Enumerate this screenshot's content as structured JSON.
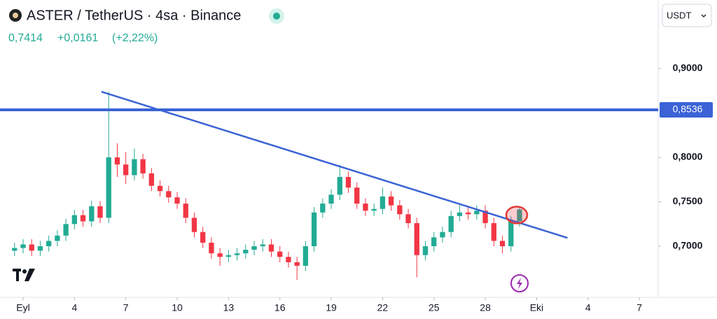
{
  "chart_data": {
    "type": "candlestick",
    "title": "ASTER / TetherUS · 4sa · Binance",
    "last_price": "0,7414",
    "change": "+0,0161",
    "change_percent": "(+2,22%)",
    "currency": "USDT",
    "up_color": "#22ab94",
    "down_color": "#f23645",
    "line_color": "#3b63d6",
    "x": [
      0.5,
      1,
      1.5,
      2,
      2.5,
      3,
      3.5,
      4,
      4.5,
      5,
      5.5,
      6,
      6.5,
      7,
      7.5,
      8,
      8.5,
      9,
      9.5,
      10,
      10.5,
      11,
      11.5,
      12,
      12.5,
      13,
      13.5,
      14,
      14.5,
      15,
      15.5,
      16,
      16.5,
      17,
      17.5,
      18,
      18.5,
      19,
      19.5,
      20,
      20.5,
      21,
      21.5,
      22,
      22.5,
      23,
      23.5,
      24,
      24.5,
      25,
      25.5,
      26,
      26.5,
      27,
      27.5,
      28,
      28.5,
      29,
      29.5,
      30
    ],
    "open": [
      0.695,
      0.698,
      0.702,
      0.695,
      0.7,
      0.706,
      0.712,
      0.725,
      0.735,
      0.728,
      0.745,
      0.732,
      0.8,
      0.792,
      0.78,
      0.798,
      0.782,
      0.768,
      0.762,
      0.755,
      0.748,
      0.732,
      0.716,
      0.704,
      0.692,
      0.688,
      0.69,
      0.692,
      0.696,
      0.7,
      0.702,
      0.694,
      0.688,
      0.682,
      0.678,
      0.7,
      0.738,
      0.748,
      0.758,
      0.778,
      0.766,
      0.748,
      0.74,
      0.742,
      0.756,
      0.746,
      0.736,
      0.726,
      0.69,
      0.7,
      0.71,
      0.716,
      0.734,
      0.738,
      0.736,
      0.74,
      0.726,
      0.706,
      0.7,
      0.728
    ],
    "high": [
      0.704,
      0.708,
      0.708,
      0.706,
      0.712,
      0.718,
      0.731,
      0.741,
      0.741,
      0.751,
      0.751,
      0.874,
      0.816,
      0.806,
      0.81,
      0.804,
      0.788,
      0.774,
      0.768,
      0.761,
      0.754,
      0.738,
      0.722,
      0.71,
      0.698,
      0.696,
      0.698,
      0.702,
      0.706,
      0.708,
      0.708,
      0.7,
      0.694,
      0.688,
      0.706,
      0.744,
      0.754,
      0.764,
      0.792,
      0.784,
      0.772,
      0.754,
      0.748,
      0.766,
      0.762,
      0.752,
      0.742,
      0.732,
      0.706,
      0.716,
      0.722,
      0.74,
      0.746,
      0.744,
      0.746,
      0.746,
      0.732,
      0.712,
      0.734,
      0.744
    ],
    "low": [
      0.689,
      0.692,
      0.689,
      0.689,
      0.694,
      0.7,
      0.706,
      0.719,
      0.722,
      0.722,
      0.726,
      0.726,
      0.778,
      0.77,
      0.774,
      0.776,
      0.762,
      0.756,
      0.749,
      0.742,
      0.726,
      0.71,
      0.698,
      0.686,
      0.678,
      0.682,
      0.684,
      0.686,
      0.69,
      0.694,
      0.688,
      0.682,
      0.676,
      0.662,
      0.672,
      0.694,
      0.732,
      0.742,
      0.752,
      0.76,
      0.742,
      0.734,
      0.734,
      0.736,
      0.74,
      0.73,
      0.72,
      0.665,
      0.684,
      0.694,
      0.704,
      0.71,
      0.728,
      0.73,
      0.73,
      0.72,
      0.7,
      0.692,
      0.694,
      0.722
    ],
    "close": [
      0.698,
      0.702,
      0.695,
      0.7,
      0.706,
      0.712,
      0.725,
      0.735,
      0.728,
      0.745,
      0.732,
      0.8,
      0.792,
      0.78,
      0.798,
      0.782,
      0.768,
      0.762,
      0.755,
      0.748,
      0.732,
      0.716,
      0.704,
      0.692,
      0.688,
      0.69,
      0.692,
      0.696,
      0.7,
      0.702,
      0.694,
      0.688,
      0.682,
      0.678,
      0.7,
      0.738,
      0.748,
      0.758,
      0.778,
      0.766,
      0.748,
      0.74,
      0.742,
      0.756,
      0.746,
      0.736,
      0.726,
      0.69,
      0.7,
      0.71,
      0.716,
      0.734,
      0.738,
      0.736,
      0.74,
      0.726,
      0.706,
      0.7,
      0.728,
      0.7414
    ],
    "trendline": {
      "x": [
        5.57,
        32.8
      ],
      "y": [
        0.874,
        0.7094
      ]
    },
    "hline": {
      "value": 0.8536,
      "label": "0,8536"
    },
    "xlim": [
      -0.35,
      38.1
    ],
    "ylim": [
      0.6425,
      0.9772
    ],
    "xticks": [
      {
        "value": 1,
        "label": "Eyl"
      },
      4,
      7,
      10,
      13,
      16,
      19,
      22,
      25,
      28,
      {
        "value": 31,
        "label": "Eki"
      },
      {
        "value": 34,
        "label": "4"
      },
      {
        "value": 37,
        "label": "7"
      }
    ],
    "yticks": [
      {
        "value": 0.7,
        "label": "0,7000"
      },
      {
        "value": 0.75,
        "label": "0,7500"
      },
      {
        "value": 0.8,
        "label": "0,8000"
      },
      {
        "value": 0.9,
        "label": "0,9000"
      }
    ],
    "grid": false
  }
}
